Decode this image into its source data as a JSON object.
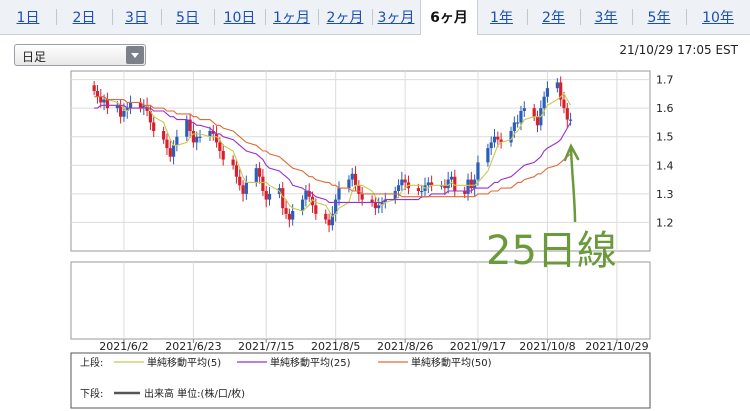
{
  "tabs": [
    {
      "label": "1日",
      "active": false
    },
    {
      "label": "2日",
      "active": false
    },
    {
      "label": "3日",
      "active": false
    },
    {
      "label": "5日",
      "active": false
    },
    {
      "label": "10日",
      "active": false
    },
    {
      "label": "1ヶ月",
      "active": false
    },
    {
      "label": "2ヶ月",
      "active": false
    },
    {
      "label": "3ヶ月",
      "active": false
    },
    {
      "label": "6ヶ月",
      "active": true
    },
    {
      "label": "1年",
      "active": false
    },
    {
      "label": "2年",
      "active": false
    },
    {
      "label": "3年",
      "active": false
    },
    {
      "label": "5年",
      "active": false
    },
    {
      "label": "10年",
      "active": false
    }
  ],
  "period_select": {
    "value": "日足"
  },
  "timestamp": "21/10/29 17:05 EST",
  "annotation": {
    "text": "25日線"
  },
  "legend": {
    "upper_label": "上段:",
    "lower_label": "下段:",
    "items": [
      {
        "label": "単純移動平均(5)",
        "color": "#c8c850"
      },
      {
        "label": "単純移動平均(25)",
        "color": "#9b30d0"
      },
      {
        "label": "単純移動平均(50)",
        "color": "#e06a3a"
      }
    ],
    "volume_label": "出来高 単位:(株/口/枚)",
    "volume_color": "#555555"
  },
  "chart_data": {
    "type": "candlestick",
    "x_ticks": [
      "2021/6/2",
      "2021/6/23",
      "2021/7/15",
      "2021/8/5",
      "2021/8/26",
      "2021/9/17",
      "2021/10/8",
      "2021/10/29"
    ],
    "y_ticks": [
      1.2,
      1.3,
      1.4,
      1.5,
      1.6,
      1.7
    ],
    "ylim": [
      1.1,
      1.73
    ],
    "x_range": [
      "2021/5/17",
      "2021/11/8"
    ],
    "grid": true,
    "up_color": "#2a5eb8",
    "down_color": "#d81f2a",
    "closes": [
      1.66,
      1.64,
      1.62,
      1.63,
      1.6,
      1.61,
      1.57,
      1.59,
      1.6,
      1.62,
      1.6,
      1.61,
      1.59,
      1.55,
      1.52,
      1.49,
      1.46,
      1.43,
      1.47,
      1.5,
      1.56,
      1.52,
      1.48,
      1.5,
      1.5,
      1.52,
      1.51,
      1.48,
      1.45,
      1.42,
      1.4,
      1.36,
      1.33,
      1.3,
      1.34,
      1.39,
      1.36,
      1.31,
      1.28,
      1.3,
      1.32,
      1.25,
      1.23,
      1.21,
      1.24,
      1.28,
      1.31,
      1.29,
      1.26,
      1.23,
      1.21,
      1.19,
      1.23,
      1.28,
      1.32,
      1.35,
      1.37,
      1.33,
      1.3,
      1.28,
      1.27,
      1.25,
      1.26,
      1.27,
      1.28,
      1.31,
      1.33,
      1.35,
      1.34,
      1.32,
      1.31,
      1.31,
      1.33,
      1.34,
      1.33,
      1.33,
      1.32,
      1.35,
      1.36,
      1.31,
      1.3,
      1.35,
      1.32,
      1.35,
      1.41,
      1.46,
      1.48,
      1.5,
      1.49,
      1.48,
      1.52,
      1.55,
      1.55,
      1.59,
      1.6,
      1.57,
      1.54,
      1.6,
      1.64,
      1.67,
      1.69,
      1.63,
      1.6,
      1.56,
      1.56
    ],
    "series": [
      {
        "name": "単純移動平均(5)",
        "color": "#c8c850",
        "values": [
          null,
          null,
          null,
          null,
          1.63,
          1.62,
          1.61,
          1.6,
          1.59,
          1.6,
          1.6,
          1.6,
          1.61,
          1.59,
          1.57,
          1.55,
          1.52,
          1.49,
          1.47,
          1.47,
          1.48,
          1.5,
          1.51,
          1.51,
          1.51,
          1.5,
          1.5,
          1.5,
          1.49,
          1.47,
          1.45,
          1.42,
          1.39,
          1.36,
          1.34,
          1.34,
          1.34,
          1.34,
          1.34,
          1.33,
          1.31,
          1.29,
          1.28,
          1.26,
          1.25,
          1.24,
          1.25,
          1.26,
          1.28,
          1.27,
          1.26,
          1.24,
          1.22,
          1.23,
          1.25,
          1.27,
          1.31,
          1.33,
          1.33,
          1.33,
          1.31,
          1.29,
          1.27,
          1.26,
          1.27,
          1.28,
          1.29,
          1.31,
          1.32,
          1.33,
          1.33,
          1.33,
          1.32,
          1.32,
          1.33,
          1.33,
          1.33,
          1.33,
          1.34,
          1.33,
          1.33,
          1.33,
          1.33,
          1.33,
          1.34,
          1.38,
          1.41,
          1.44,
          1.47,
          1.48,
          1.49,
          1.51,
          1.52,
          1.54,
          1.56,
          1.57,
          1.57,
          1.57,
          1.59,
          1.61,
          1.63,
          1.64,
          1.65,
          1.63,
          1.61
        ]
      },
      {
        "name": "単純移動平均(25)",
        "color": "#9b30d0",
        "values": [
          1.6,
          1.6,
          1.61,
          1.61,
          1.61,
          1.61,
          1.61,
          1.61,
          1.6,
          1.6,
          1.6,
          1.6,
          1.6,
          1.6,
          1.59,
          1.59,
          1.58,
          1.57,
          1.57,
          1.56,
          1.56,
          1.55,
          1.55,
          1.54,
          1.54,
          1.53,
          1.52,
          1.51,
          1.51,
          1.5,
          1.49,
          1.48,
          1.47,
          1.46,
          1.45,
          1.44,
          1.43,
          1.42,
          1.4,
          1.39,
          1.38,
          1.37,
          1.36,
          1.35,
          1.33,
          1.32,
          1.31,
          1.31,
          1.3,
          1.29,
          1.28,
          1.27,
          1.27,
          1.27,
          1.27,
          1.27,
          1.27,
          1.27,
          1.27,
          1.27,
          1.27,
          1.27,
          1.27,
          1.27,
          1.28,
          1.28,
          1.28,
          1.28,
          1.28,
          1.28,
          1.28,
          1.29,
          1.29,
          1.29,
          1.3,
          1.3,
          1.3,
          1.31,
          1.31,
          1.31,
          1.31,
          1.31,
          1.31,
          1.32,
          1.32,
          1.32,
          1.33,
          1.34,
          1.34,
          1.35,
          1.36,
          1.37,
          1.38,
          1.39,
          1.4,
          1.41,
          1.42,
          1.43,
          1.45,
          1.46,
          1.48,
          1.49,
          1.51,
          1.53,
          1.55
        ]
      },
      {
        "name": "単純移動平均(50)",
        "color": "#e06a3a",
        "values": [
          1.64,
          1.64,
          1.64,
          1.64,
          1.63,
          1.63,
          1.63,
          1.63,
          1.62,
          1.62,
          1.62,
          1.61,
          1.61,
          1.61,
          1.6,
          1.6,
          1.59,
          1.59,
          1.59,
          1.58,
          1.58,
          1.58,
          1.57,
          1.57,
          1.56,
          1.56,
          1.55,
          1.54,
          1.54,
          1.53,
          1.52,
          1.51,
          1.5,
          1.49,
          1.48,
          1.47,
          1.46,
          1.45,
          1.45,
          1.44,
          1.43,
          1.42,
          1.41,
          1.4,
          1.39,
          1.38,
          1.37,
          1.36,
          1.36,
          1.35,
          1.34,
          1.34,
          1.33,
          1.33,
          1.32,
          1.32,
          1.31,
          1.31,
          1.31,
          1.3,
          1.3,
          1.3,
          1.3,
          1.3,
          1.3,
          1.3,
          1.3,
          1.29,
          1.29,
          1.29,
          1.29,
          1.29,
          1.29,
          1.29,
          1.29,
          1.29,
          1.29,
          1.29,
          1.29,
          1.29,
          1.29,
          1.29,
          1.29,
          1.29,
          1.3,
          1.3,
          1.31,
          1.31,
          1.31,
          1.32,
          1.32,
          1.33,
          1.34,
          1.34,
          1.35,
          1.36,
          1.37,
          1.37,
          1.38,
          1.39,
          1.4,
          1.41,
          1.42,
          1.43,
          1.44
        ]
      }
    ]
  }
}
